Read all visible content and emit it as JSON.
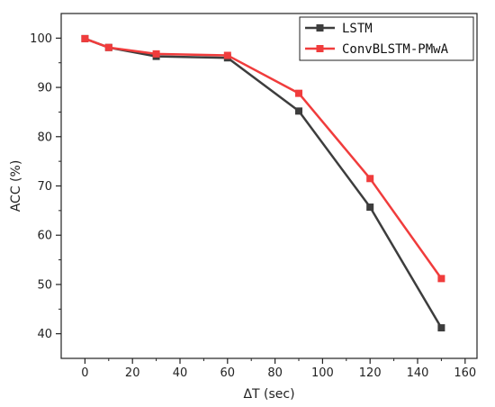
{
  "chart_data": {
    "type": "line",
    "x": [
      0,
      10,
      30,
      60,
      90,
      120,
      150
    ],
    "series": [
      {
        "name": "LSTM",
        "values": [
          99.9,
          98.1,
          96.3,
          96.0,
          85.2,
          65.7,
          41.2
        ],
        "color": "#3d3d3d",
        "marker": "square"
      },
      {
        "name": "ConvBLSTM-PMwA",
        "values": [
          99.9,
          98.1,
          96.8,
          96.5,
          88.8,
          71.5,
          51.2
        ],
        "color": "#f03c3c",
        "marker": "square"
      }
    ],
    "xlabel": "ΔT (sec)",
    "ylabel": "ACC (%)",
    "xlim": [
      -10,
      165
    ],
    "ylim": [
      35,
      105
    ],
    "xticks": [
      0,
      20,
      40,
      60,
      80,
      100,
      120,
      140,
      160
    ],
    "yticks": [
      40,
      50,
      60,
      70,
      80,
      90,
      100
    ],
    "legend_position": "top-right",
    "grid": false
  }
}
